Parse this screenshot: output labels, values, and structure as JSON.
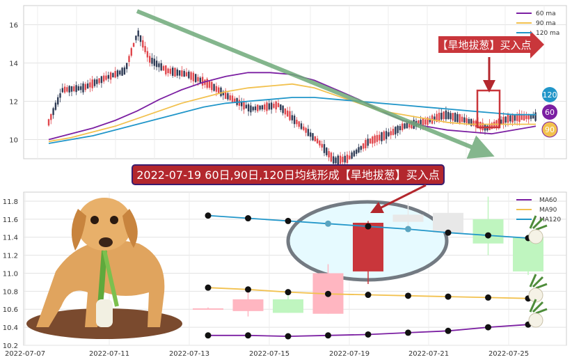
{
  "colors": {
    "ma60": "#7B1FA2",
    "ma90": "#F2C14E",
    "ma120": "#2196C9",
    "candle_up": "#E0464C",
    "candle_down": "#2E3B55",
    "trend_arrow": "#6FAA7A",
    "banner_bg": "#B3272D",
    "banner_border": "#3A1D6E",
    "callout_bg": "#C9363B",
    "ellipse_fill": "#E6FAFF",
    "ellipse_stroke": "#737A82"
  },
  "annotations": {
    "callout_top": "【旱地拔葱】买入点",
    "banner": "2022-07-19 60日,90日,120日均线形成【旱地拔葱】买入点",
    "badges": [
      "120",
      "60",
      "90"
    ]
  },
  "chart_data": [
    {
      "type": "candlestick",
      "title": "",
      "xlabel": "",
      "ylabel": "",
      "ylim": [
        9.0,
        17.0
      ],
      "yticks": [
        10,
        12,
        14,
        16
      ],
      "grid": true,
      "legend": [
        "60 ma",
        "90 ma",
        "120 ma"
      ],
      "legend_position": "top-right",
      "series": [
        {
          "name": "60 ma",
          "values": [
            10.0,
            10.3,
            10.6,
            11.0,
            11.5,
            12.1,
            12.6,
            13.0,
            13.3,
            13.5,
            13.5,
            13.4,
            13.1,
            12.6,
            12.1,
            11.5,
            11.0,
            10.7,
            10.5,
            10.4,
            10.3,
            10.5,
            10.7
          ]
        },
        {
          "name": "90 ma",
          "values": [
            9.9,
            10.1,
            10.4,
            10.7,
            11.1,
            11.5,
            11.9,
            12.2,
            12.5,
            12.7,
            12.8,
            12.9,
            12.7,
            12.3,
            11.9,
            11.5,
            11.3,
            11.1,
            10.9,
            10.8,
            10.8,
            10.8,
            10.8
          ]
        },
        {
          "name": "120 ma",
          "values": [
            9.8,
            10.0,
            10.2,
            10.5,
            10.8,
            11.1,
            11.4,
            11.7,
            11.9,
            12.0,
            12.1,
            12.2,
            12.2,
            12.1,
            12.0,
            11.9,
            11.8,
            11.7,
            11.6,
            11.5,
            11.4,
            11.3,
            11.3
          ]
        }
      ]
    },
    {
      "type": "candlestick",
      "title": "",
      "xlabel": "",
      "ylabel": "",
      "ylim": [
        10.2,
        11.9
      ],
      "yticks": [
        10.2,
        10.4,
        10.6,
        10.8,
        11.0,
        11.2,
        11.4,
        11.6,
        11.8
      ],
      "x_tick_labels": [
        "2022-07-07",
        "2022-07-11",
        "2022-07-13",
        "2022-07-15",
        "2022-07-19",
        "2022-07-21",
        "2022-07-25"
      ],
      "grid": true,
      "legend": [
        "MA60",
        "MA90",
        "MA120"
      ],
      "legend_position": "top-right",
      "dates": [
        "2022-07-13",
        "2022-07-14",
        "2022-07-15",
        "2022-07-18",
        "2022-07-19",
        "2022-07-20",
        "2022-07-21",
        "2022-07-22",
        "2022-07-25"
      ],
      "candles": [
        {
          "open": 10.61,
          "close": 10.61,
          "high": 10.62,
          "low": 10.6,
          "up": true
        },
        {
          "open": 10.58,
          "close": 10.71,
          "high": 10.8,
          "low": 10.52,
          "up": true
        },
        {
          "open": 10.56,
          "close": 10.71,
          "high": 10.76,
          "low": 10.56,
          "up": true
        },
        {
          "open": 10.55,
          "close": 11.0,
          "high": 11.1,
          "low": 10.55,
          "up": true
        },
        {
          "open": 11.02,
          "close": 11.56,
          "high": 11.58,
          "low": 10.88,
          "up": true
        },
        {
          "open": 11.57,
          "close": 11.65,
          "high": 11.78,
          "low": 11.5,
          "up": true
        },
        {
          "open": 11.45,
          "close": 11.67,
          "high": 11.9,
          "low": 11.42,
          "up": true
        },
        {
          "open": 11.33,
          "close": 11.6,
          "high": 11.85,
          "low": 11.2,
          "up": true
        },
        {
          "open": 11.02,
          "close": 11.4,
          "high": 11.43,
          "low": 10.98,
          "up": true
        }
      ],
      "series": [
        {
          "name": "MA60",
          "values": [
            10.31,
            10.31,
            10.3,
            10.31,
            10.32,
            10.34,
            10.36,
            10.4,
            10.43
          ]
        },
        {
          "name": "MA90",
          "values": [
            10.84,
            10.82,
            10.79,
            10.77,
            10.76,
            10.75,
            10.74,
            10.73,
            10.72
          ]
        },
        {
          "name": "MA120",
          "values": [
            11.64,
            11.61,
            11.58,
            11.55,
            11.52,
            11.49,
            11.45,
            11.42,
            11.39
          ]
        }
      ]
    }
  ]
}
